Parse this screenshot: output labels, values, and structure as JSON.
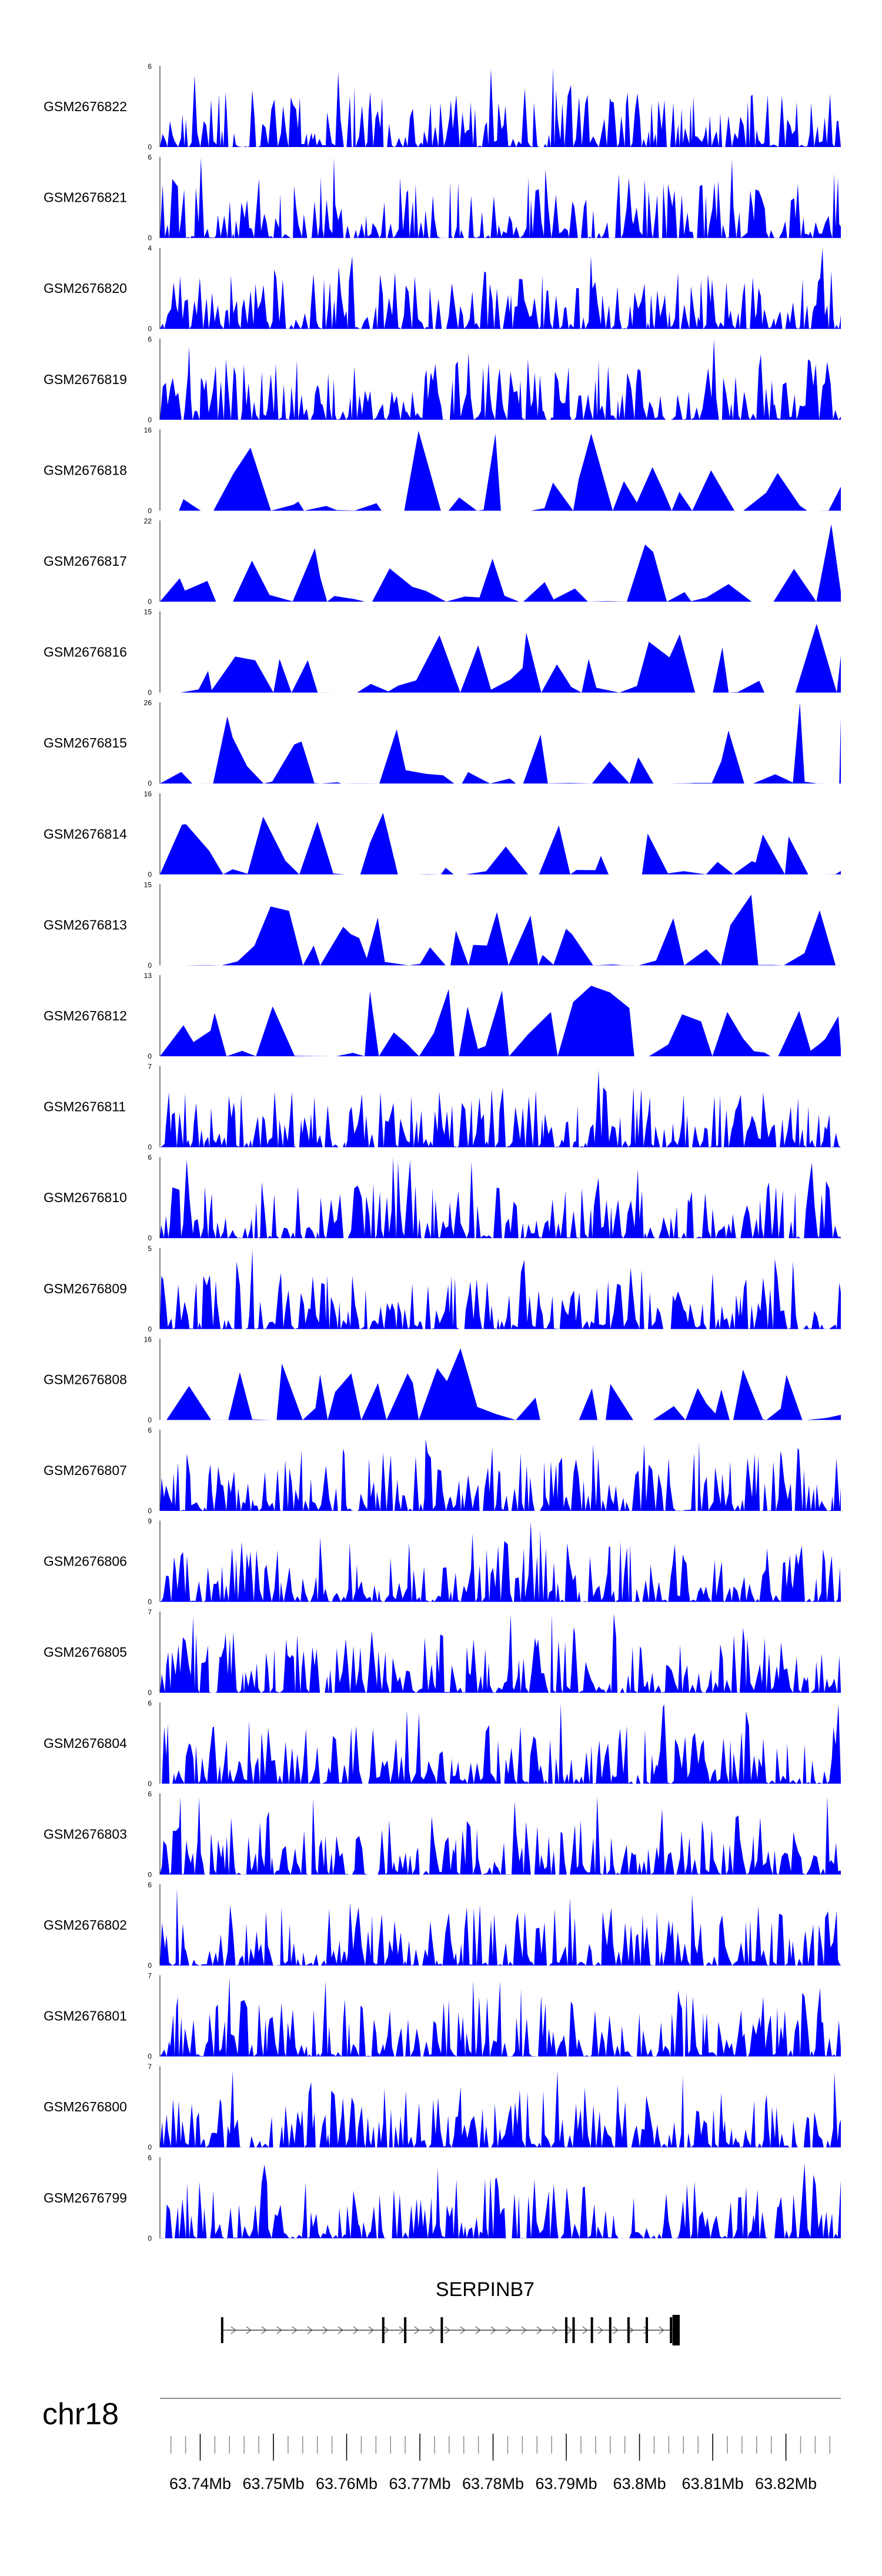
{
  "tracks": [
    {
      "name": "GSM2676822",
      "ymax": 6,
      "ymin": 0
    },
    {
      "name": "GSM2676821",
      "ymax": 6,
      "ymin": 0
    },
    {
      "name": "GSM2676820",
      "ymax": 4,
      "ymin": 0
    },
    {
      "name": "GSM2676819",
      "ymax": 6,
      "ymin": 0
    },
    {
      "name": "GSM2676818",
      "ymax": 16,
      "ymin": 0
    },
    {
      "name": "GSM2676817",
      "ymax": 22,
      "ymin": 0
    },
    {
      "name": "GSM2676816",
      "ymax": 15,
      "ymin": 0
    },
    {
      "name": "GSM2676815",
      "ymax": 26,
      "ymin": 0
    },
    {
      "name": "GSM2676814",
      "ymax": 16,
      "ymin": 0
    },
    {
      "name": "GSM2676813",
      "ymax": 15,
      "ymin": 0
    },
    {
      "name": "GSM2676812",
      "ymax": 13,
      "ymin": 0
    },
    {
      "name": "GSM2676811",
      "ymax": 7,
      "ymin": 0
    },
    {
      "name": "GSM2676810",
      "ymax": 6,
      "ymin": 0
    },
    {
      "name": "GSM2676809",
      "ymax": 5,
      "ymin": 0
    },
    {
      "name": "GSM2676808",
      "ymax": 16,
      "ymin": 0
    },
    {
      "name": "GSM2676807",
      "ymax": 6,
      "ymin": 0
    },
    {
      "name": "GSM2676806",
      "ymax": 9,
      "ymin": 0
    },
    {
      "name": "GSM2676805",
      "ymax": 7,
      "ymin": 0
    },
    {
      "name": "GSM2676804",
      "ymax": 6,
      "ymin": 0
    },
    {
      "name": "GSM2676803",
      "ymax": 6,
      "ymin": 0
    },
    {
      "name": "GSM2676802",
      "ymax": 6,
      "ymin": 0
    },
    {
      "name": "GSM2676801",
      "ymax": 7,
      "ymin": 0
    },
    {
      "name": "GSM2676800",
      "ymax": 7,
      "ymin": 0
    },
    {
      "name": "GSM2676799",
      "ymax": 6,
      "ymin": 0
    }
  ],
  "gene": {
    "name": "SERPINB7",
    "strand": "+",
    "start_mb": 63.743,
    "end_mb": 63.8055,
    "exons_mb": [
      63.743,
      63.765,
      63.768,
      63.773,
      63.79,
      63.791,
      63.7935,
      63.796,
      63.7985,
      63.801,
      63.8043
    ],
    "cds_end_mb": [
      63.8045,
      63.8055
    ]
  },
  "chromosome": "chr18",
  "axis": {
    "range_mb": [
      63.7345,
      63.8275
    ],
    "major_ticks": [
      "63.74Mb",
      "63.75Mb",
      "63.76Mb",
      "63.77Mb",
      "63.78Mb",
      "63.79Mb",
      "63.8Mb",
      "63.81Mb",
      "63.82Mb"
    ],
    "major_values_mb": [
      63.74,
      63.75,
      63.76,
      63.77,
      63.78,
      63.79,
      63.8,
      63.81,
      63.82
    ],
    "minor_step_mb": 0.002
  },
  "colors": {
    "signal": "#0000ff",
    "gene": "#000000",
    "axis": "#8c8c8c",
    "text": "#000000"
  }
}
